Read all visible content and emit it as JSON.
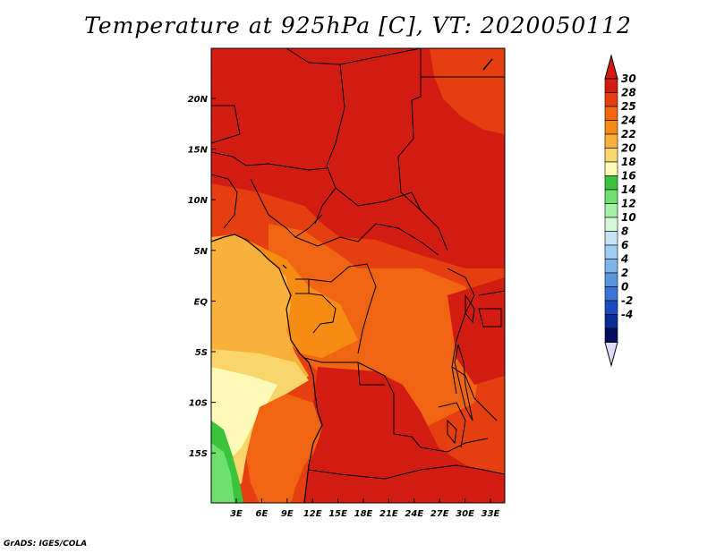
{
  "title": "Temperature at 925hPa [C], VT: 2020050112",
  "credit": "GrADS: IGES/COLA",
  "map": {
    "lon_labels": [
      "3E",
      "6E",
      "9E",
      "12E",
      "15E",
      "18E",
      "21E",
      "24E",
      "27E",
      "30E",
      "33E"
    ],
    "lat_labels": [
      "20N",
      "15N",
      "10N",
      "5N",
      "EQ",
      "5S",
      "10S",
      "15S"
    ]
  },
  "colorbar": {
    "levels": [
      "30",
      "28",
      "25",
      "24",
      "22",
      "20",
      "18",
      "16",
      "14",
      "12",
      "10",
      "8",
      "6",
      "4",
      "2",
      "0",
      "-2",
      "-4"
    ],
    "colors": [
      "#d21c12",
      "#e53e10",
      "#f06512",
      "#f78c14",
      "#f8b23c",
      "#f9d66c",
      "#fefbb8",
      "#39c43b",
      "#6de070",
      "#a3f1a3",
      "#d6f6d6",
      "#c4e4f6",
      "#a0cdf2",
      "#7eb4ea",
      "#5a96e0",
      "#3a74d6",
      "#1a4cc0",
      "#0a2c98",
      "#050c60"
    ],
    "top_color": "#d21c12",
    "bottom_color": "#dcdcfa"
  }
}
